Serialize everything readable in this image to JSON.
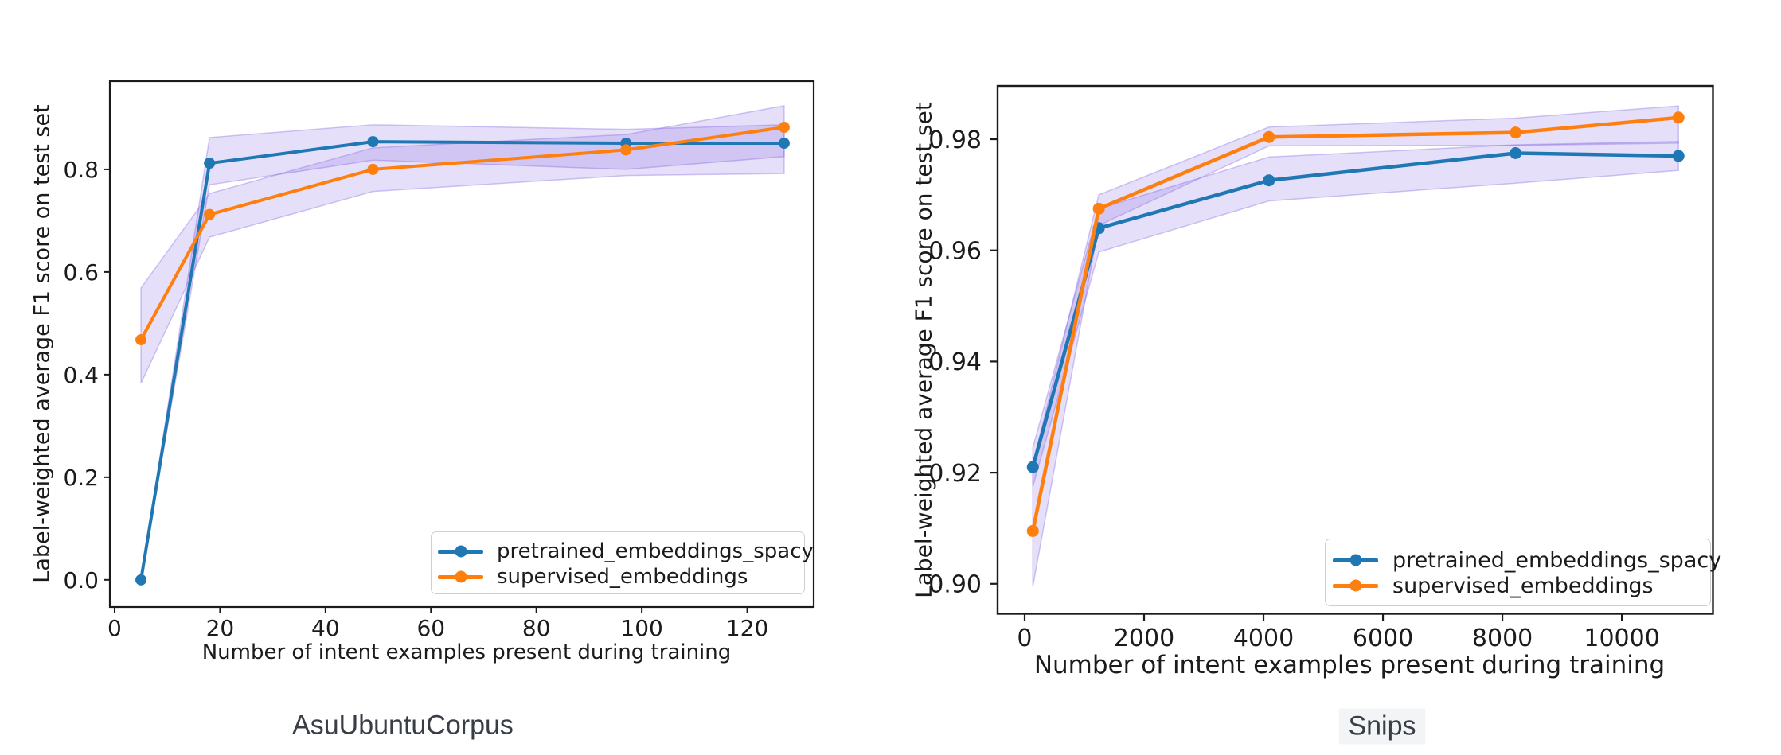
{
  "page": {
    "background": "#ffffff"
  },
  "colors": {
    "blue": "#1f77b4",
    "orange": "#ff7f0e",
    "band_fill": "#7a56dd",
    "band_edge": "#8a6ce2",
    "axis_text": "#1b1b1b",
    "frame": "#1b1b1b",
    "caption_text": "#383e46",
    "legend_border": "#cfcfcf",
    "snips_highlight": "#f3f4f6"
  },
  "captions": [
    {
      "text": "AsuUbuntuCorpus",
      "highlighted": false
    },
    {
      "text": "Snips",
      "highlighted": true
    }
  ],
  "chart_data": [
    {
      "type": "line",
      "title": "AsuUbuntuCorpus",
      "xlabel": "Number of intent examples present during training",
      "ylabel": "Label-weighted average F1 score on test set",
      "grid": false,
      "legend_position": "lower right",
      "x": [
        5,
        18,
        49,
        97,
        127
      ],
      "xlim": [
        -0.9,
        132.6
      ],
      "ylim": [
        -0.053,
        0.972
      ],
      "xticks": {
        "values": [
          0,
          20,
          40,
          60,
          80,
          100,
          120
        ],
        "labels": [
          "0",
          "20",
          "40",
          "60",
          "80",
          "100",
          "120"
        ]
      },
      "yticks": {
        "values": [
          0.0,
          0.2,
          0.4,
          0.6,
          0.8
        ],
        "labels": [
          "0.0",
          "0.2",
          "0.4",
          "0.6",
          "0.8"
        ]
      },
      "series": [
        {
          "name": "pretrained_embeddings_spacy",
          "color": "#1f77b4",
          "values": [
            0.0,
            0.812,
            0.854,
            0.851,
            0.851
          ],
          "band_lower": [
            0.0,
            0.77,
            0.818,
            0.8,
            0.825
          ],
          "band_upper": [
            0.0,
            0.862,
            0.887,
            0.878,
            0.887
          ]
        },
        {
          "name": "supervised_embeddings",
          "color": "#ff7f0e",
          "values": [
            0.468,
            0.712,
            0.8,
            0.838,
            0.882
          ],
          "band_lower": [
            0.383,
            0.668,
            0.757,
            0.788,
            0.792
          ],
          "band_upper": [
            0.569,
            0.753,
            0.842,
            0.868,
            0.924
          ]
        }
      ]
    },
    {
      "type": "line",
      "title": "Snips",
      "xlabel": "Number of intent examples present during training",
      "ylabel": "Label-weighted average F1 score on test set",
      "grid": false,
      "legend_position": "lower right",
      "x": [
        137,
        1242,
        4091,
        8222,
        10948
      ],
      "xlim": [
        -453,
        11525
      ],
      "ylim": [
        0.8946,
        0.9896
      ],
      "xticks": {
        "values": [
          0,
          2000,
          4000,
          6000,
          8000,
          10000
        ],
        "labels": [
          "0",
          "2000",
          "4000",
          "6000",
          "8000",
          "10000"
        ]
      },
      "yticks": {
        "values": [
          0.9,
          0.92,
          0.94,
          0.96,
          0.98
        ],
        "labels": [
          "0.90",
          "0.92",
          "0.94",
          "0.96",
          "0.98"
        ]
      },
      "series": [
        {
          "name": "pretrained_embeddings_spacy",
          "color": "#1f77b4",
          "values": [
            0.921,
            0.964,
            0.9726,
            0.9775,
            0.977
          ],
          "band_lower": [
            0.9175,
            0.9597,
            0.9689,
            0.9721,
            0.9744
          ],
          "band_upper": [
            0.9245,
            0.9675,
            0.9768,
            0.979,
            0.9796
          ]
        },
        {
          "name": "supervised_embeddings",
          "color": "#ff7f0e",
          "values": [
            0.9095,
            0.9675,
            0.9804,
            0.9812,
            0.9839
          ],
          "band_lower": [
            0.8995,
            0.9645,
            0.9788,
            0.9789,
            0.9793
          ],
          "band_upper": [
            0.9215,
            0.97,
            0.9822,
            0.9838,
            0.986
          ]
        }
      ]
    }
  ]
}
